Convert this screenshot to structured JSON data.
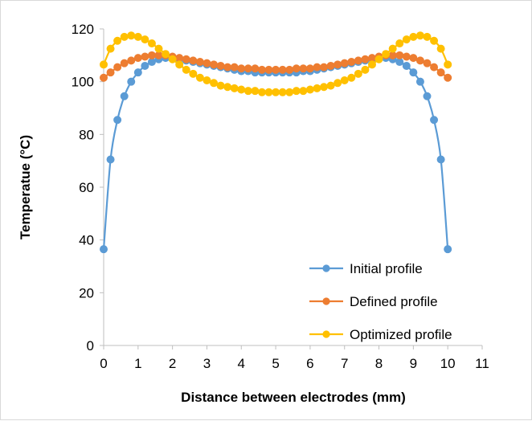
{
  "chart_data": {
    "type": "line",
    "title": "",
    "xlabel": "Distance between electrodes (mm)",
    "ylabel": "Temperatue (°C)",
    "xlim": [
      0,
      11
    ],
    "ylim": [
      0,
      120
    ],
    "xticks": [
      0,
      1,
      2,
      3,
      4,
      5,
      6,
      7,
      8,
      9,
      10,
      11
    ],
    "yticks": [
      0,
      20,
      40,
      60,
      80,
      100,
      120
    ],
    "grid": false,
    "legend_position": "bottom-right",
    "series": [
      {
        "name": "Initial profile",
        "color": "#5B9BD5",
        "x": [
          0,
          0.2,
          0.4,
          0.6,
          0.8,
          1.0,
          1.2,
          1.4,
          1.6,
          1.8,
          2.0,
          2.2,
          2.4,
          2.6,
          2.8,
          3.0,
          3.2,
          3.4,
          3.6,
          3.8,
          4.0,
          4.2,
          4.4,
          4.6,
          4.8,
          5.0,
          5.2,
          5.4,
          5.6,
          5.8,
          6.0,
          6.2,
          6.4,
          6.6,
          6.8,
          7.0,
          7.2,
          7.4,
          7.6,
          7.8,
          8.0,
          8.2,
          8.4,
          8.6,
          8.8,
          9.0,
          9.2,
          9.4,
          9.6,
          9.8,
          10.0
        ],
        "y": [
          36.5,
          70.5,
          85.5,
          94.5,
          100,
          103.5,
          106,
          107.5,
          108.5,
          109,
          109,
          108.5,
          108,
          107.5,
          107,
          106.5,
          106,
          105.5,
          105,
          104.5,
          104,
          104,
          103.5,
          103.5,
          103.5,
          103.5,
          103.5,
          103.5,
          103.5,
          104,
          104,
          104.5,
          105,
          105.5,
          106,
          106.5,
          107,
          107.5,
          108,
          108.5,
          109,
          109,
          108.5,
          107.5,
          106,
          103.5,
          100,
          94.5,
          85.5,
          70.5,
          36.5
        ]
      },
      {
        "name": "Defined profile",
        "color": "#ED7D31",
        "x": [
          0,
          0.2,
          0.4,
          0.6,
          0.8,
          1.0,
          1.2,
          1.4,
          1.6,
          1.8,
          2.0,
          2.2,
          2.4,
          2.6,
          2.8,
          3.0,
          3.2,
          3.4,
          3.6,
          3.8,
          4.0,
          4.2,
          4.4,
          4.6,
          4.8,
          5.0,
          5.2,
          5.4,
          5.6,
          5.8,
          6.0,
          6.2,
          6.4,
          6.6,
          6.8,
          7.0,
          7.2,
          7.4,
          7.6,
          7.8,
          8.0,
          8.2,
          8.4,
          8.6,
          8.8,
          9.0,
          9.2,
          9.4,
          9.6,
          9.8,
          10.0
        ],
        "y": [
          101.5,
          103.5,
          105.5,
          107,
          108,
          109,
          109.5,
          110,
          110,
          110,
          109.5,
          109,
          108.5,
          108,
          107.5,
          107,
          106.5,
          106,
          105.5,
          105.5,
          105,
          105,
          105,
          104.5,
          104.5,
          104.5,
          104.5,
          104.5,
          105,
          105,
          105,
          105.5,
          105.5,
          106,
          106.5,
          107,
          107.5,
          108,
          108.5,
          109,
          109.5,
          110,
          110,
          110,
          109.5,
          109,
          108,
          107,
          105.5,
          103.5,
          101.5
        ]
      },
      {
        "name": "Optimized profile",
        "color": "#FFC000",
        "x": [
          0,
          0.2,
          0.4,
          0.6,
          0.8,
          1.0,
          1.2,
          1.4,
          1.6,
          1.8,
          2.0,
          2.2,
          2.4,
          2.6,
          2.8,
          3.0,
          3.2,
          3.4,
          3.6,
          3.8,
          4.0,
          4.2,
          4.4,
          4.6,
          4.8,
          5.0,
          5.2,
          5.4,
          5.6,
          5.8,
          6.0,
          6.2,
          6.4,
          6.6,
          6.8,
          7.0,
          7.2,
          7.4,
          7.6,
          7.8,
          8.0,
          8.2,
          8.4,
          8.6,
          8.8,
          9.0,
          9.2,
          9.4,
          9.6,
          9.8,
          10.0
        ],
        "y": [
          106.5,
          112.5,
          115.5,
          117,
          117.5,
          117,
          116,
          114.5,
          112.5,
          110.5,
          108.5,
          106.5,
          104.5,
          103,
          101.5,
          100.5,
          99.5,
          98.5,
          98,
          97.5,
          97,
          96.5,
          96.5,
          96,
          96,
          96,
          96,
          96,
          96.5,
          96.5,
          97,
          97.5,
          98,
          98.5,
          99.5,
          100.5,
          101.5,
          103,
          104.5,
          106.5,
          108.5,
          110.5,
          112.5,
          114.5,
          116,
          117,
          117.5,
          117,
          115.5,
          112.5,
          106.5
        ]
      }
    ]
  }
}
